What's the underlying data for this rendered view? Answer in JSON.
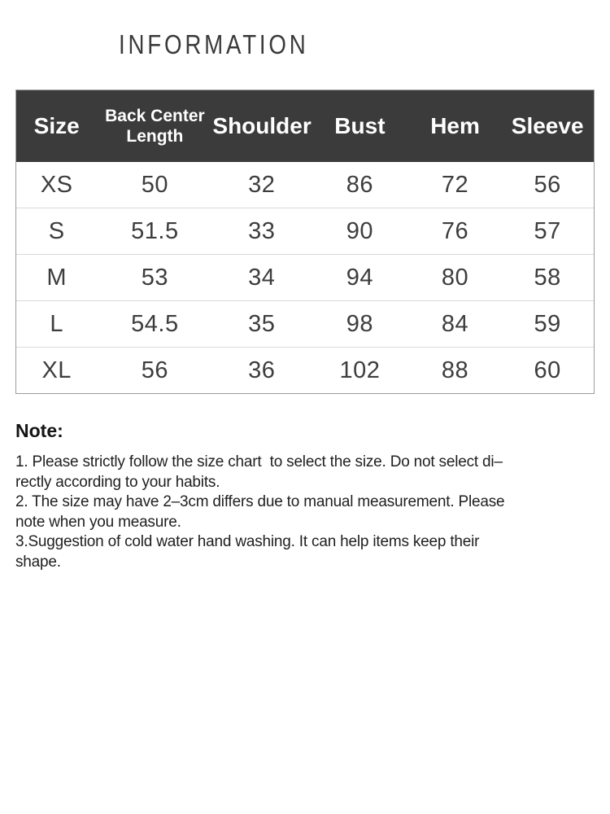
{
  "title": "INFORMATION",
  "size_chart": {
    "columns": [
      "Size",
      "Back Center\nLength",
      "Shoulder",
      "Bust",
      "Hem",
      "Sleeve"
    ],
    "rows": [
      {
        "size": "XS",
        "back_center_length": "50",
        "shoulder": "32",
        "bust": "86",
        "hem": "72",
        "sleeve": "56"
      },
      {
        "size": "S",
        "back_center_length": "51.5",
        "shoulder": "33",
        "bust": "90",
        "hem": "76",
        "sleeve": "57"
      },
      {
        "size": "M",
        "back_center_length": "53",
        "shoulder": "34",
        "bust": "94",
        "hem": "80",
        "sleeve": "58"
      },
      {
        "size": "L",
        "back_center_length": "54.5",
        "shoulder": "35",
        "bust": "98",
        "hem": "84",
        "sleeve": "59"
      },
      {
        "size": "XL",
        "back_center_length": "56",
        "shoulder": "36",
        "bust": "102",
        "hem": "88",
        "sleeve": "60"
      }
    ]
  },
  "note": {
    "heading": "Note:",
    "lines": [
      "1. Please strictly follow the size chart  to select the size. Do not select di–",
      "rectly according to your habits.",
      "2. The size may have 2–3cm differs due to manual measurement. Please",
      "note when you measure.",
      "3.Suggestion of cold water hand washing. It can help items keep their",
      "shape."
    ]
  },
  "colors": {
    "header_bg": "#3b3b3b",
    "header_text": "#ffffff",
    "table_border": "#9c9c9c",
    "row_divider": "#d9d9d9",
    "body_text": "#3d3d3d"
  }
}
